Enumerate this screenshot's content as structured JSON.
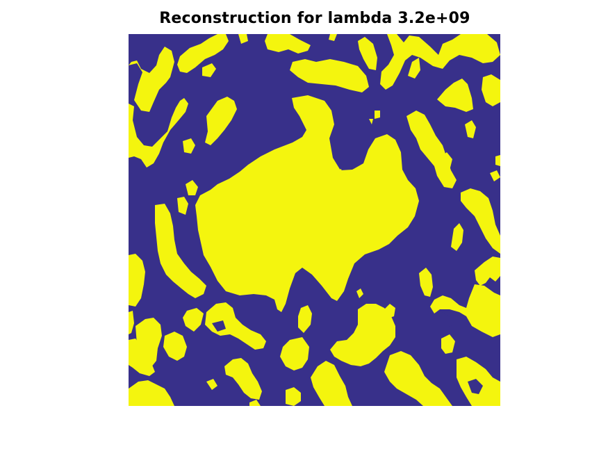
{
  "figure": {
    "title": "Reconstruction for lambda 3.2e+09"
  },
  "image": {
    "description_colors": {
      "background": "#38308a",
      "foreground": "#f4f50e"
    },
    "colormap": "parula",
    "binary": true
  }
}
